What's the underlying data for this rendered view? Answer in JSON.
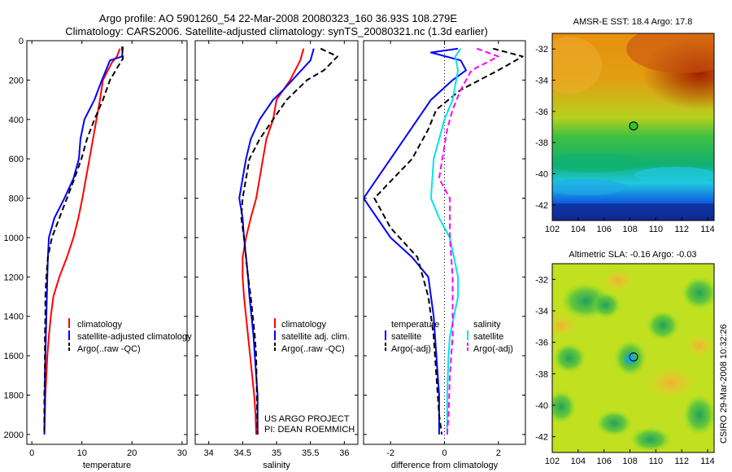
{
  "title": {
    "line1": "Argo profile: AO 5901260_54 22-Mar-2008 20080323_160 36.93S 108.279E",
    "line2": "Climatology: CARS2006. Satellite-adjusted climatology: synTS_20080321.nc (1.3d earlier)"
  },
  "colors": {
    "climatology": "#ff0000",
    "satellite": "#0000ff",
    "argo": "#000000",
    "satellite_salinity": "#00e5e5",
    "argo_salinity_adj": "#ff00ff"
  },
  "side_label": "CSIRO 29-Mar-2008 10:32:26",
  "project_credit": {
    "line1": "US ARGO PROJECT",
    "line2": "PI: DEAN ROEMMICH"
  },
  "legends": {
    "temperature": [
      "climatology",
      "satellite-adjusted climatology",
      "Argo(..raw -QC)"
    ],
    "salinity": [
      "climatology",
      "satellite adj. clim.",
      "Argo(..raw -QC)"
    ],
    "difference_left_head": "temperature",
    "difference_left": [
      "satellite",
      "Argo(-adj)"
    ],
    "difference_right_head": "salinity",
    "difference_right": [
      "satellite",
      "Argo(-adj)"
    ]
  },
  "chart_data": [
    {
      "type": "line",
      "name": "temperature-profile",
      "xlabel": "temperature",
      "ylabel": "",
      "xlim": [
        -1,
        31
      ],
      "ylim": [
        2050,
        0
      ],
      "y_reversed": true,
      "xticks": [
        0,
        10,
        20,
        30
      ],
      "yticks": [
        0,
        200,
        400,
        600,
        800,
        1000,
        1200,
        1400,
        1600,
        1800,
        2000
      ],
      "series": [
        {
          "name": "climatology",
          "color": "#ff0000",
          "dash": "solid",
          "x": [
            17.6,
            17.0,
            16.0,
            14.2,
            13.6,
            12.9,
            12.2,
            11.5,
            10.8,
            10.1,
            9.3,
            8.3,
            7.0,
            5.5,
            4.3,
            3.8,
            3.4,
            3.1,
            2.9,
            2.7,
            2.6,
            2.5
          ],
          "y": [
            40,
            80,
            110,
            200,
            300,
            400,
            500,
            600,
            700,
            800,
            900,
            1000,
            1100,
            1200,
            1300,
            1400,
            1500,
            1600,
            1700,
            1800,
            1900,
            2000
          ]
        },
        {
          "name": "satellite-adjusted climatology",
          "color": "#0000ff",
          "dash": "solid",
          "x": [
            18.2,
            18.0,
            15.6,
            14.0,
            12.5,
            10.5,
            9.7,
            9.4,
            8.3,
            6.5,
            4.5,
            3.4,
            3.2,
            3.1,
            3.0,
            2.9,
            2.8,
            2.7,
            2.6,
            2.6,
            2.5
          ],
          "y": [
            30,
            80,
            100,
            200,
            300,
            400,
            500,
            600,
            700,
            800,
            900,
            1000,
            1100,
            1200,
            1300,
            1400,
            1500,
            1600,
            1700,
            1800,
            2000
          ]
        },
        {
          "name": "Argo(..raw -QC)",
          "color": "#000000",
          "dash": "dashed",
          "x": [
            18.0,
            18.2,
            17.0,
            15.6,
            14.2,
            12.5,
            11.0,
            9.9,
            8.5,
            7.0,
            5.5,
            4.0,
            3.2,
            2.9,
            2.7,
            2.7,
            2.6,
            2.6,
            2.6,
            2.5,
            2.5
          ],
          "y": [
            30,
            90,
            140,
            200,
            300,
            400,
            500,
            600,
            700,
            800,
            900,
            1000,
            1100,
            1200,
            1300,
            1400,
            1500,
            1600,
            1700,
            1800,
            2000
          ]
        }
      ]
    },
    {
      "type": "line",
      "name": "salinity-profile",
      "xlabel": "salinity",
      "xlim": [
        33.8,
        36.2
      ],
      "ylim": [
        2050,
        0
      ],
      "y_reversed": true,
      "xticks": [
        34,
        34.5,
        35,
        35.5,
        36
      ],
      "series": [
        {
          "name": "climatology",
          "color": "#ff0000",
          "dash": "solid",
          "x": [
            35.4,
            35.35,
            35.2,
            35.0,
            34.95,
            34.85,
            34.8,
            34.75,
            34.7,
            34.62,
            34.55,
            34.5,
            34.5,
            34.52,
            34.55,
            34.58,
            34.61,
            34.64,
            34.67,
            34.69,
            34.7
          ],
          "y": [
            40,
            100,
            200,
            300,
            400,
            500,
            600,
            700,
            800,
            900,
            1000,
            1100,
            1200,
            1300,
            1400,
            1500,
            1600,
            1700,
            1800,
            1900,
            2000
          ]
        },
        {
          "name": "satellite adj. clim.",
          "color": "#0000ff",
          "dash": "solid",
          "x": [
            35.55,
            35.5,
            35.1,
            34.95,
            34.75,
            34.62,
            34.55,
            34.5,
            34.45,
            34.5,
            34.52,
            34.55,
            34.58,
            34.6,
            34.63,
            34.66,
            34.68,
            34.7,
            34.72,
            34.72
          ],
          "y": [
            40,
            100,
            250,
            300,
            400,
            500,
            600,
            700,
            800,
            900,
            1000,
            1100,
            1200,
            1300,
            1400,
            1500,
            1600,
            1700,
            1800,
            2000
          ]
        },
        {
          "name": "Argo(..raw -QC)",
          "color": "#000000",
          "dash": "dashed",
          "x": [
            35.65,
            35.9,
            35.7,
            35.45,
            35.15,
            34.95,
            34.75,
            34.6,
            34.55,
            34.5,
            34.48,
            34.52,
            34.55,
            34.58,
            34.62,
            34.65,
            34.68,
            34.7,
            34.71,
            34.72
          ],
          "y": [
            40,
            80,
            150,
            200,
            300,
            400,
            500,
            600,
            700,
            800,
            900,
            1000,
            1100,
            1200,
            1300,
            1400,
            1500,
            1600,
            1800,
            2000
          ]
        }
      ]
    },
    {
      "type": "line",
      "name": "difference-from-climatology",
      "xlabel": "difference from climatology",
      "xlim": [
        -3,
        3
      ],
      "ylim": [
        2050,
        0
      ],
      "y_reversed": true,
      "xticks": [
        -2,
        0,
        2
      ],
      "zero_line": "dotted",
      "series": [
        {
          "name": "temperature satellite",
          "color": "#0000ff",
          "dash": "solid",
          "x": [
            0.5,
            -0.5,
            0.6,
            0.8,
            0.3,
            -0.5,
            -1.0,
            -2.0,
            -3.0,
            -2.0,
            -1.2,
            -0.6,
            -0.5,
            -0.4,
            -0.3,
            -0.2,
            -0.2
          ],
          "y": [
            40,
            60,
            100,
            150,
            200,
            300,
            400,
            600,
            800,
            1000,
            1100,
            1200,
            1300,
            1400,
            1600,
            1800,
            2000
          ]
        },
        {
          "name": "temperature Argo(-adj)",
          "color": "#000000",
          "dash": "dashed",
          "x": [
            1.8,
            2.9,
            2.0,
            0.6,
            -0.3,
            -0.6,
            -1.2,
            -2.6,
            -2.0,
            -1.0,
            -0.6,
            -0.4,
            -0.3,
            -0.2,
            -0.1
          ],
          "y": [
            40,
            80,
            150,
            250,
            350,
            450,
            600,
            800,
            950,
            1100,
            1300,
            1500,
            1700,
            1900,
            2000
          ]
        },
        {
          "name": "salinity satellite",
          "color": "#00e5e5",
          "dash": "solid",
          "x": [
            0.6,
            0.4,
            0.5,
            0.3,
            0.0,
            -0.2,
            -0.4,
            -0.5,
            -0.2,
            0.2,
            0.5,
            0.5,
            0.2,
            0.15,
            0.1,
            0.1
          ],
          "y": [
            40,
            80,
            150,
            300,
            400,
            500,
            600,
            800,
            900,
            1000,
            1200,
            1300,
            1500,
            1600,
            1800,
            2000
          ]
        },
        {
          "name": "salinity Argo(-adj)",
          "color": "#ff00ff",
          "dash": "dashed",
          "x": [
            1.2,
            2.0,
            1.0,
            0.6,
            0.3,
            0.1,
            -0.2,
            0.2,
            0.2,
            0.3,
            0.3,
            0.3,
            0.2,
            0.15,
            0.1
          ],
          "y": [
            40,
            80,
            150,
            250,
            350,
            450,
            700,
            800,
            1000,
            1200,
            1400,
            1500,
            1700,
            1900,
            2000
          ]
        }
      ]
    },
    {
      "type": "heatmap",
      "name": "amsr-e-sst-map",
      "title": "AMSR-E SST: 18.4 Argo: 17.8",
      "xlim": [
        102,
        114.5
      ],
      "ylim": [
        -43,
        -31
      ],
      "xticks": [
        102,
        104,
        106,
        108,
        110,
        112,
        114
      ],
      "yticks": [
        -32,
        -34,
        -36,
        -38,
        -40,
        -42
      ],
      "marker": {
        "lon": 108.279,
        "lat": -36.93
      }
    },
    {
      "type": "heatmap",
      "name": "altimetric-sla-map",
      "title": "Altimetric SLA: -0.16 Argo: -0.03",
      "xlim": [
        102,
        114.5
      ],
      "ylim": [
        -43,
        -31
      ],
      "xticks": [
        102,
        104,
        106,
        108,
        110,
        112,
        114
      ],
      "yticks": [
        -32,
        -34,
        -36,
        -38,
        -40,
        -42
      ],
      "marker": {
        "lon": 108.279,
        "lat": -36.93
      }
    }
  ]
}
